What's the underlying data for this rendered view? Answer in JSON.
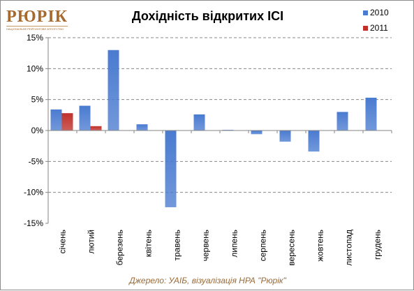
{
  "logo": {
    "text": "РЮРІК",
    "subtitle": "НАЦІОНАЛЬНЕ РЕЙТИНГОВЕ АГЕНТСТВО"
  },
  "source": "Джерело: УАІБ, візуалізація НРА \"Рюрік\"",
  "colors": {
    "series_2010": "#4a7bd0",
    "series_2011": "#c0312b",
    "grid": "#888888",
    "axis": "#868686"
  },
  "chart_data": {
    "type": "bar",
    "title": "Дохідність відкритих ІСІ",
    "xlabel": "",
    "ylabel": "",
    "ylim": [
      -15,
      15
    ],
    "yticks": [
      15,
      10,
      5,
      0,
      -5,
      -10,
      -15
    ],
    "ytick_labels": [
      "15%",
      "10%",
      "5%",
      "0%",
      "-5%",
      "-10%",
      "-15%"
    ],
    "grid": true,
    "legend_position": "top-right",
    "categories": [
      "січень",
      "лютий",
      "березень",
      "квітень",
      "травень",
      "червень",
      "липень",
      "серпень",
      "вересень",
      "жовтень",
      "листопад",
      "грудень"
    ],
    "series": [
      {
        "name": "2010",
        "values": [
          3.4,
          4.0,
          13.0,
          1.0,
          -12.4,
          2.6,
          0.1,
          -0.6,
          -1.8,
          -3.4,
          3.0,
          5.3
        ]
      },
      {
        "name": "2011",
        "values": [
          2.8,
          0.7,
          null,
          null,
          null,
          null,
          null,
          null,
          null,
          null,
          null,
          null
        ]
      }
    ]
  }
}
